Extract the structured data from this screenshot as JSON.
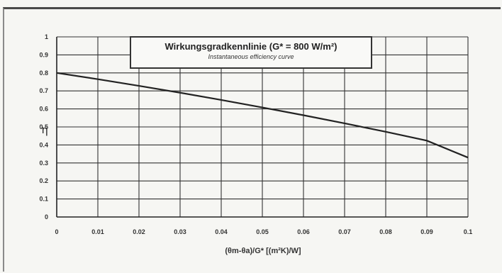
{
  "chart_data": {
    "type": "line",
    "title": "Wirkungsgradkennlinie (G* = 800 W/m²)",
    "subtitle": "Instantaneous efficiency curve",
    "ylabel": "η",
    "xlabel": "(θm-θa)/G* [(m²K)/W]",
    "xlim": [
      0,
      0.1
    ],
    "ylim": [
      0,
      1
    ],
    "x_ticks": [
      "0",
      "0.01",
      "0.02",
      "0.03",
      "0.04",
      "0.05",
      "0.06",
      "0.07",
      "0.08",
      "0.09",
      "0.1"
    ],
    "y_ticks": [
      "0",
      "0.1",
      "0.2",
      "0.3",
      "0.4",
      "0.5",
      "0.6",
      "0.7",
      "0.8",
      "0.9",
      "1"
    ],
    "grid": true,
    "series": [
      {
        "x": [
          0,
          0.01,
          0.02,
          0.03,
          0.04,
          0.05,
          0.06,
          0.07,
          0.08,
          0.09,
          0.1
        ],
        "y": [
          0.8,
          0.765,
          0.728,
          0.69,
          0.65,
          0.608,
          0.565,
          0.52,
          0.473,
          0.424,
          0.33
        ]
      }
    ]
  }
}
